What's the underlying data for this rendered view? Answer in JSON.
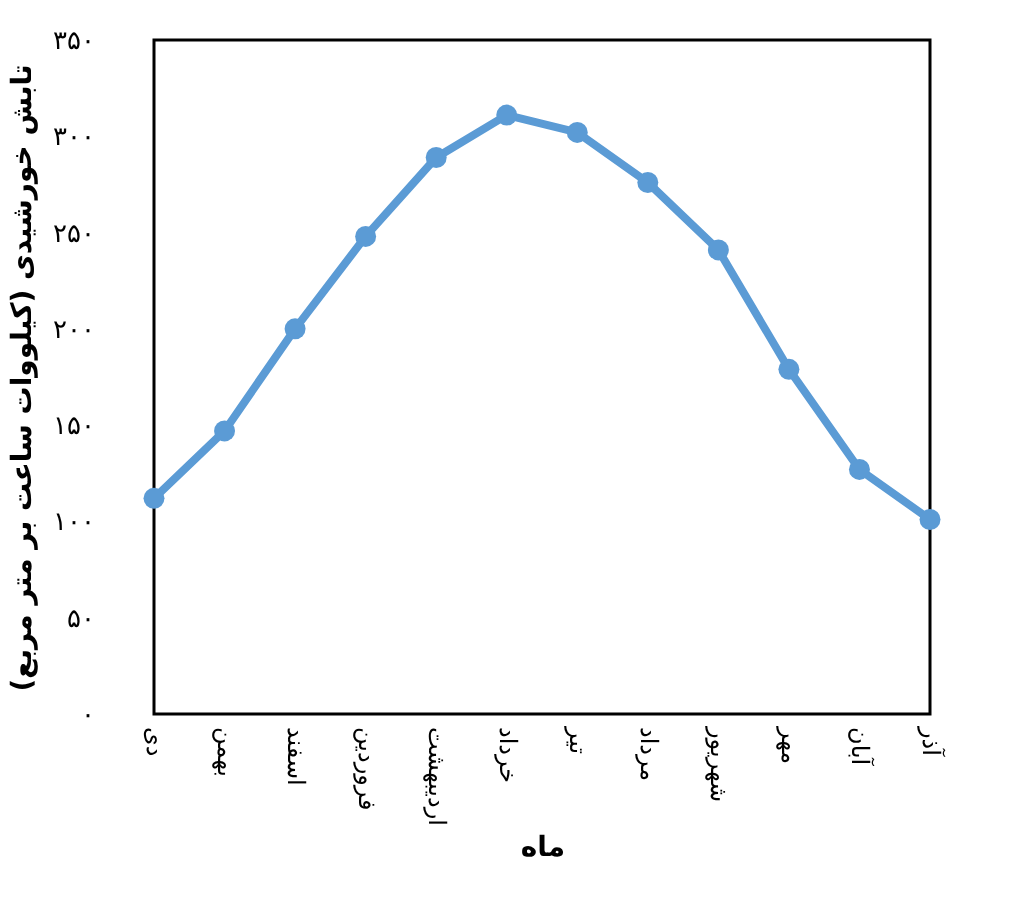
{
  "chart_data": {
    "type": "line",
    "xlabel": "ماه",
    "ylabel": "تابش خورشیدی (کیلووات ساعت بر متر مربع)",
    "categories": [
      "دی",
      "بهمن",
      "اسفند",
      "فروردین",
      "اردیبهشت",
      "خرداد",
      "تیر",
      "مرداد",
      "شهریور",
      "مهر",
      "آبان",
      "آذر"
    ],
    "series": [
      {
        "color": "#5b9bd5",
        "values": [
          112,
          147,
          200,
          248,
          289,
          311,
          302,
          276,
          241,
          179,
          127,
          101
        ]
      }
    ],
    "ylim": [
      0,
      350
    ],
    "yticks": [
      {
        "value": 0,
        "label": "۰"
      },
      {
        "value": 50,
        "label": "۵۰"
      },
      {
        "value": 100,
        "label": "۱۰۰"
      },
      {
        "value": 150,
        "label": "۱۵۰"
      },
      {
        "value": 200,
        "label": "۲۰۰"
      },
      {
        "value": 250,
        "label": "۲۵۰"
      },
      {
        "value": 300,
        "label": "۳۰۰"
      },
      {
        "value": 350,
        "label": "۳۵۰"
      }
    ],
    "grid": false,
    "marker": "circle",
    "line_style": "solid"
  }
}
